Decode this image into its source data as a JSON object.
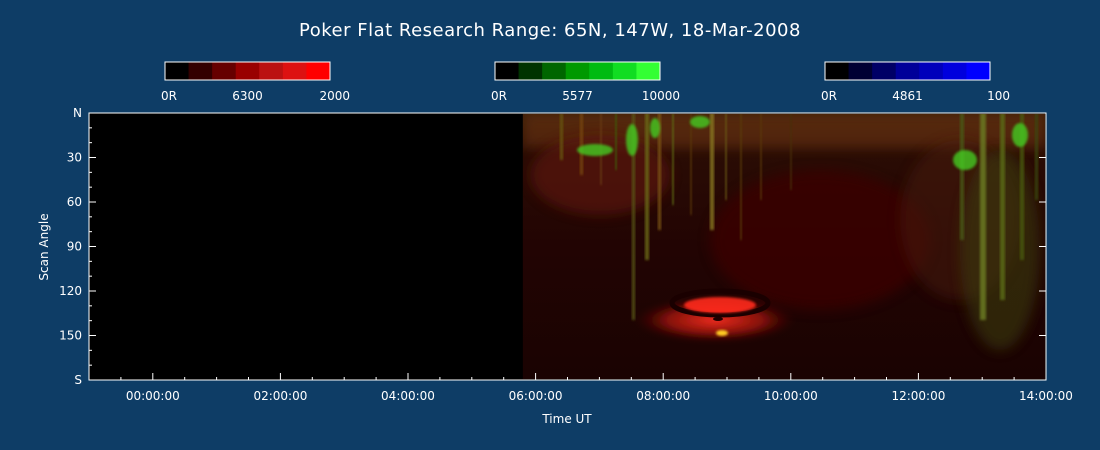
{
  "chart_data": {
    "type": "heatmap",
    "title": "Poker Flat Research Range: 65N, 147W, 18-Mar-2008",
    "xlabel": "Time UT",
    "ylabel": "Scan Angle",
    "x_ticks": [
      "00:00:00",
      "02:00:00",
      "04:00:00",
      "06:00:00",
      "08:00:00",
      "10:00:00",
      "12:00:00",
      "14:00:00"
    ],
    "x_tick_hours": [
      0,
      2,
      4,
      6,
      8,
      10,
      12,
      14
    ],
    "xlim_hours": [
      -1.0,
      14.0
    ],
    "y_ticks": [
      "N",
      "30",
      "60",
      "90",
      "120",
      "150",
      "S"
    ],
    "y_tick_values": [
      0,
      30,
      60,
      90,
      120,
      150,
      180
    ],
    "ylim": [
      0,
      180
    ],
    "data_start_hour": 5.8,
    "grid": false,
    "colorbars": [
      {
        "label_min": "0R",
        "label_mid": "6300",
        "label_max": "2000",
        "color": "#ff0000",
        "steps": [
          "#000000",
          "#330000",
          "#660000",
          "#990000",
          "#bb1111",
          "#dd1111",
          "#ff0000"
        ]
      },
      {
        "label_min": "0R",
        "label_mid": "5577",
        "label_max": "10000",
        "color": "#00ff00",
        "steps": [
          "#000000",
          "#003300",
          "#006600",
          "#009900",
          "#00bb11",
          "#11dd22",
          "#33ff33"
        ]
      },
      {
        "label_min": "0R",
        "label_mid": "4861",
        "label_max": "100",
        "color": "#0000ff",
        "steps": [
          "#000000",
          "#000033",
          "#000066",
          "#000099",
          "#0000bb",
          "#0000dd",
          "#0000ff"
        ]
      }
    ]
  }
}
